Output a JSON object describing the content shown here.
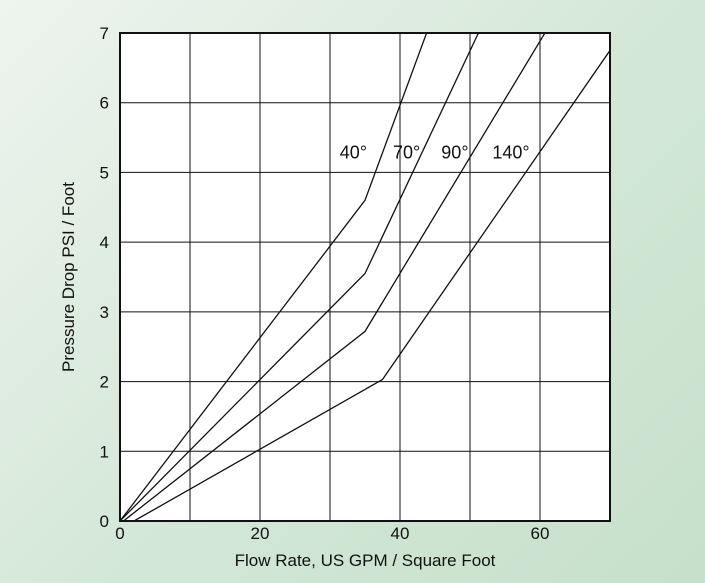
{
  "chart_data": {
    "type": "line",
    "title": "",
    "xlabel": "Flow Rate, US GPM / Square Foot",
    "ylabel": "Pressure Drop PSI / Foot",
    "xlim": [
      0,
      70
    ],
    "ylim": [
      0,
      7
    ],
    "x_ticks": [
      0,
      10,
      20,
      30,
      40,
      50,
      60,
      70
    ],
    "x_tick_labels": [
      "0",
      "",
      "20",
      "",
      "40",
      "",
      "60",
      ""
    ],
    "y_ticks": [
      0,
      1,
      2,
      3,
      4,
      5,
      6,
      7
    ],
    "y_tick_labels": [
      "0",
      "1",
      "2",
      "3",
      "4",
      "5",
      "6",
      "7"
    ],
    "grid": true,
    "legend": "none",
    "line_color": "#111111",
    "series": [
      {
        "name": "40°",
        "label_at": [
          31.4,
          5.2
        ],
        "x": [
          0,
          35,
          43.8
        ],
        "y": [
          0,
          4.6,
          7.0
        ]
      },
      {
        "name": "70°",
        "label_at": [
          39.0,
          5.2
        ],
        "x": [
          0,
          35,
          51.2
        ],
        "y": [
          0,
          3.55,
          7.0
        ]
      },
      {
        "name": "90°",
        "label_at": [
          45.9,
          5.2
        ],
        "x": [
          0.5,
          35,
          60.7
        ],
        "y": [
          0,
          2.72,
          7.0
        ]
      },
      {
        "name": "140°",
        "label_at": [
          53.2,
          5.2
        ],
        "x": [
          2,
          37.5,
          70
        ],
        "y": [
          0,
          2.03,
          6.75
        ]
      }
    ]
  }
}
